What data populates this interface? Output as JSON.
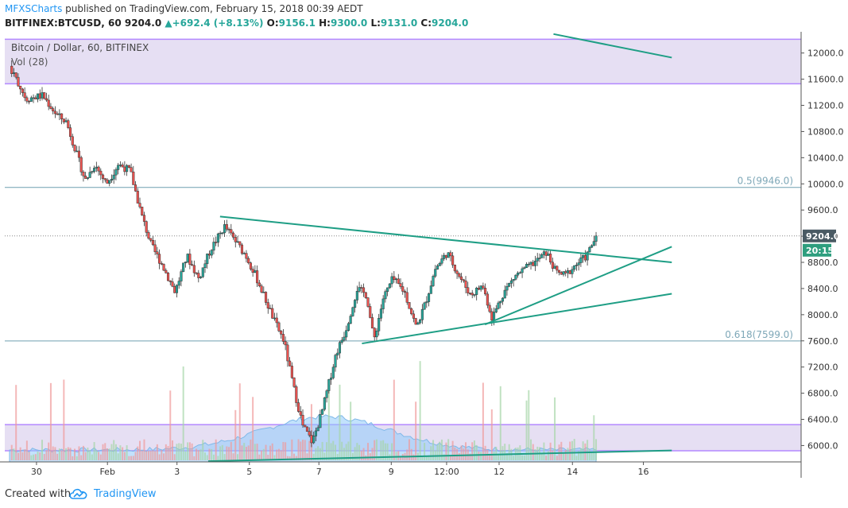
{
  "header": {
    "author": "MFXSCharts",
    "published_text": "published on TradingView.com, February 15, 2018 00:39 AEDT",
    "symbol": "BITFINEX:BTCUSD, 60",
    "last": "9204.0",
    "change": "+692.4 (+8.13%)",
    "o_label": "O:",
    "o_value": "9156.1",
    "h_label": "H:",
    "h_value": "9300.0",
    "l_label": "L:",
    "l_value": "9131.0",
    "c_label": "C:",
    "c_value": "9204.0"
  },
  "footer": {
    "created_with": "Created with",
    "brand": "TradingView"
  },
  "colors": {
    "up": "#26a69a",
    "down": "#ef5350",
    "trendline": "#1e9e85",
    "zone_fill": "#d1c4e9",
    "zone_border": "#b388ff",
    "fib_line": "#6f9fb0",
    "volume_area": "#90caf9",
    "price_label_bg": "#4a5a63",
    "timer_bg": "#2e9e7e"
  },
  "chart_data": {
    "type": "candlestick",
    "title": "Bitcoin / Dollar, 60, BITFINEX",
    "indicator": "Vol (28)",
    "y_range": [
      5750,
      12300
    ],
    "y_ticks": [
      6000,
      6400,
      6800,
      7200,
      7600,
      8000,
      8400,
      8800,
      9200,
      9600,
      10000,
      10400,
      10800,
      11200,
      11600,
      12000
    ],
    "x_range": [
      0,
      16.6
    ],
    "x_ticks": [
      {
        "label": "30",
        "x": 0.57
      },
      {
        "label": "Feb",
        "x": 2.07
      },
      {
        "label": "3",
        "x": 3.54
      },
      {
        "label": "5",
        "x": 5.07
      },
      {
        "label": "7",
        "x": 6.54
      },
      {
        "label": "9",
        "x": 8.07
      },
      {
        "label": "12:00",
        "x": 9.24
      },
      {
        "label": "12",
        "x": 10.35
      },
      {
        "label": "14",
        "x": 11.9
      },
      {
        "label": "16",
        "x": 13.4
      }
    ],
    "path_points": [
      [
        0.0,
        11800
      ],
      [
        0.35,
        11300
      ],
      [
        0.7,
        11350
      ],
      [
        1.0,
        11050
      ],
      [
        1.2,
        10950
      ],
      [
        1.4,
        10500
      ],
      [
        1.6,
        10050
      ],
      [
        1.8,
        10300
      ],
      [
        2.05,
        10000
      ],
      [
        2.3,
        10300
      ],
      [
        2.55,
        10200
      ],
      [
        2.8,
        9500
      ],
      [
        3.0,
        9050
      ],
      [
        3.2,
        8800
      ],
      [
        3.5,
        8350
      ],
      [
        3.75,
        8900
      ],
      [
        4.0,
        8550
      ],
      [
        4.25,
        9000
      ],
      [
        4.55,
        9350
      ],
      [
        4.8,
        9100
      ],
      [
        5.0,
        8900
      ],
      [
        5.2,
        8600
      ],
      [
        5.4,
        8250
      ],
      [
        5.6,
        7900
      ],
      [
        5.8,
        7600
      ],
      [
        6.0,
        6900
      ],
      [
        6.2,
        6300
      ],
      [
        6.4,
        6050
      ],
      [
        6.6,
        6500
      ],
      [
        6.9,
        7400
      ],
      [
        7.1,
        7750
      ],
      [
        7.35,
        8400
      ],
      [
        7.55,
        8300
      ],
      [
        7.7,
        7600
      ],
      [
        7.9,
        8250
      ],
      [
        8.1,
        8550
      ],
      [
        8.35,
        8350
      ],
      [
        8.6,
        7800
      ],
      [
        8.8,
        8200
      ],
      [
        9.0,
        8700
      ],
      [
        9.25,
        8950
      ],
      [
        9.5,
        8600
      ],
      [
        9.75,
        8300
      ],
      [
        10.0,
        8450
      ],
      [
        10.2,
        7950
      ],
      [
        10.45,
        8350
      ],
      [
        10.7,
        8600
      ],
      [
        10.9,
        8700
      ],
      [
        11.1,
        8800
      ],
      [
        11.35,
        8950
      ],
      [
        11.55,
        8650
      ],
      [
        11.75,
        8600
      ],
      [
        11.95,
        8750
      ],
      [
        12.2,
        8900
      ],
      [
        12.4,
        9204
      ]
    ],
    "resistance_zone": [
      11530,
      12210
    ],
    "support_zone": [
      5920,
      6320
    ],
    "fib_levels": [
      {
        "label": "0.5(9946.0)",
        "value": 9946
      },
      {
        "label": "0.618(7599.0)",
        "value": 7599
      }
    ],
    "dotted_price_level": 9204,
    "trendlines": [
      {
        "p1": [
          11.5,
          12290
        ],
        "p2": [
          14.0,
          11930
        ]
      },
      {
        "p1": [
          4.45,
          9500
        ],
        "p2": [
          14.0,
          8800
        ]
      },
      {
        "p1": [
          7.45,
          7560
        ],
        "p2": [
          14.0,
          8320
        ]
      },
      {
        "p1": [
          10.05,
          7850
        ],
        "p2": [
          14.0,
          9040
        ]
      },
      {
        "p1": [
          4.2,
          5760
        ],
        "p2": [
          14.0,
          5925
        ]
      }
    ],
    "last_price_label": "9204.0",
    "timer_label": "20:15"
  }
}
